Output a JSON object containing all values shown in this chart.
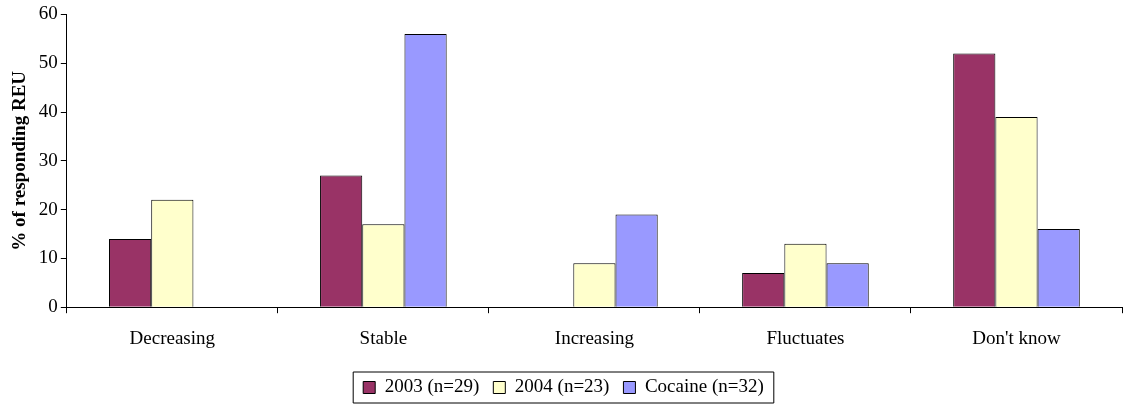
{
  "chart_data": {
    "type": "bar",
    "ylabel": "% of responding REU",
    "categories": [
      "Decreasing",
      "Stable",
      "Increasing",
      "Fluctuates",
      "Don't know"
    ],
    "series": [
      {
        "name": "2003 (n=29)",
        "color": "#993366",
        "values": [
          14,
          27,
          0,
          7,
          52
        ]
      },
      {
        "name": "2004 (n=23)",
        "color": "#ffffcc",
        "values": [
          22,
          17,
          9,
          13,
          39
        ]
      },
      {
        "name": "Cocaine (n=32)",
        "color": "#9999ff",
        "values": [
          0,
          56,
          19,
          9,
          16
        ]
      }
    ],
    "ylim": [
      0,
      60
    ],
    "yticks": [
      0,
      10,
      20,
      30,
      40,
      50,
      60
    ],
    "grid": false,
    "legend": "bottom"
  }
}
